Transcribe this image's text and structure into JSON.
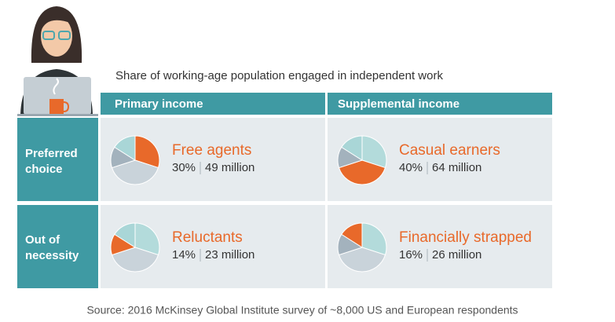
{
  "subtitle": "Share of working-age population engaged in independent work",
  "columns": [
    "Primary income",
    "Supplemental income"
  ],
  "rows": [
    "Preferred choice",
    "Out of necessity"
  ],
  "cells": [
    {
      "name": "Free agents",
      "value": 30,
      "value_label": "30%",
      "count": "49 million"
    },
    {
      "name": "Casual earners",
      "value": 40,
      "value_label": "40%",
      "count": "64 million"
    },
    {
      "name": "Reluctants",
      "value": 14,
      "value_label": "14%",
      "count": "23 million"
    },
    {
      "name": "Financially strapped",
      "value": 16,
      "value_label": "16%",
      "count": "26 million"
    }
  ],
  "colors": [
    "#b3dbdb",
    "#c9d3da",
    "#a3b2bd",
    "#a9d6d7"
  ],
  "highlight": "#e8692a",
  "source": "Source: 2016 McKinsey Global Institute survey of ~8,000 US and European respondents"
}
